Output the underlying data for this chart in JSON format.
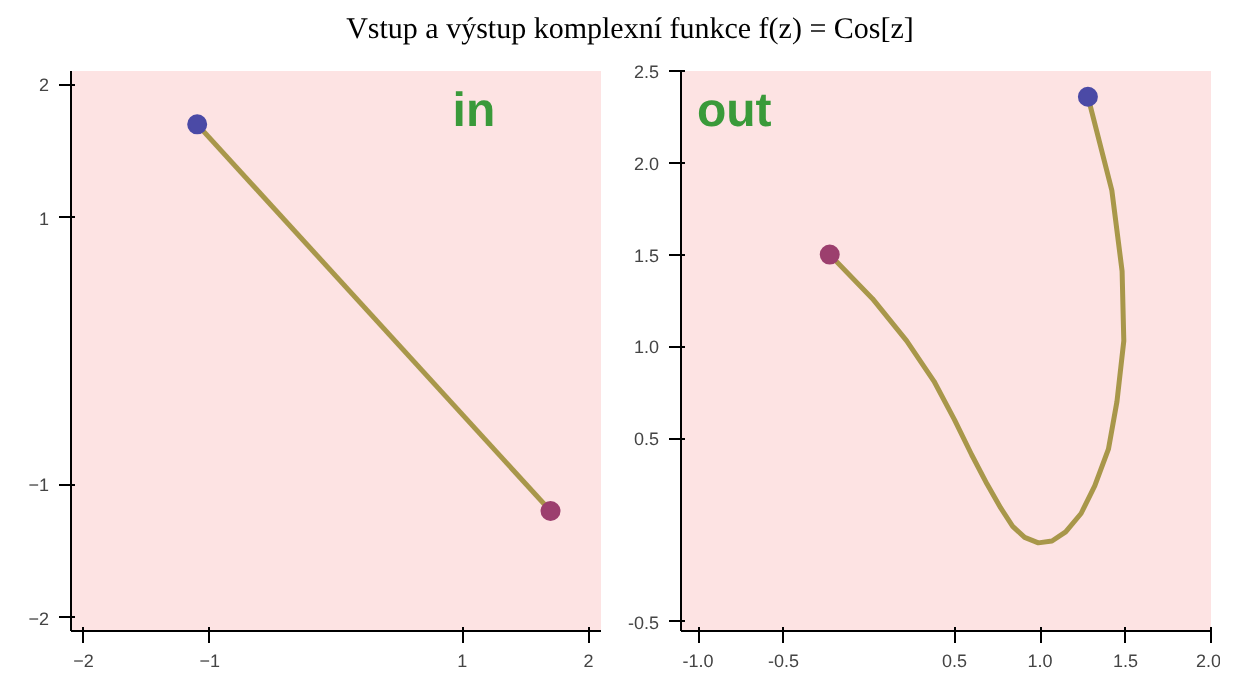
{
  "chart_data": [
    {
      "type": "line",
      "title": "Vstup a výstup komplexní funkce f(z) = Cos[z]",
      "annotations": [
        "in"
      ],
      "xlim": [
        -2.1,
        2.1
      ],
      "ylim": [
        -2.1,
        2.1
      ],
      "xticks": [
        -2,
        -1,
        1,
        2
      ],
      "yticks": [
        -2,
        -1,
        1,
        2
      ],
      "grid": false,
      "series": [
        {
          "color": "#a8974a",
          "x": [
            -1.1,
            1.7
          ],
          "values": [
            1.7,
            -1.2
          ]
        },
        {
          "type": "scatter",
          "color": "#4b4aa6",
          "x": [
            -1.1
          ],
          "values": [
            1.7
          ]
        },
        {
          "type": "scatter",
          "color": "#9c3f6e",
          "x": [
            1.7
          ],
          "values": [
            -1.2
          ]
        }
      ]
    },
    {
      "type": "line",
      "annotations": [
        "out"
      ],
      "xlim": [
        -1.1,
        2.0
      ],
      "ylim": [
        -0.55,
        2.5
      ],
      "grid": false,
      "xticks": [
        {
          "value": -1,
          "label": "-1.0"
        },
        {
          "value": -0.5,
          "label": "-0.5"
        },
        {
          "value": 0.5,
          "label": "0.5"
        },
        {
          "value": 1,
          "label": "1.0"
        },
        {
          "value": 1.5,
          "label": "1.5"
        },
        {
          "value": 2,
          "label": "2.0"
        }
      ],
      "yticks": [
        {
          "value": -0.5,
          "label": "-0.5"
        },
        {
          "value": 0.5,
          "label": "0.5"
        },
        {
          "value": 1,
          "label": "1.0"
        },
        {
          "value": 1.5,
          "label": "1.5"
        },
        {
          "value": 2,
          "label": "2.0"
        },
        {
          "value": 2.5,
          "label": "2.5"
        }
      ],
      "series": [
        {
          "color": "#a8974a",
          "x": [
            1.28,
            1.42,
            1.48,
            1.49,
            1.45,
            1.4,
            1.32,
            1.24,
            1.15,
            1.07,
            0.99,
            0.91,
            0.84,
            0.77,
            0.69,
            0.6,
            0.5,
            0.38,
            0.22,
            0.02,
            -0.23
          ],
          "values": [
            2.36,
            1.85,
            1.41,
            1.03,
            0.7,
            0.44,
            0.24,
            0.09,
            -0.01,
            -0.06,
            -0.07,
            -0.04,
            0.02,
            0.12,
            0.25,
            0.41,
            0.6,
            0.81,
            1.03,
            1.26,
            1.5
          ]
        },
        {
          "type": "scatter",
          "color": "#4b4aa6",
          "x": [
            1.28
          ],
          "values": [
            2.36
          ]
        },
        {
          "type": "scatter",
          "color": "#9c3f6e",
          "x": [
            -0.23
          ],
          "values": [
            1.5
          ]
        }
      ]
    }
  ]
}
